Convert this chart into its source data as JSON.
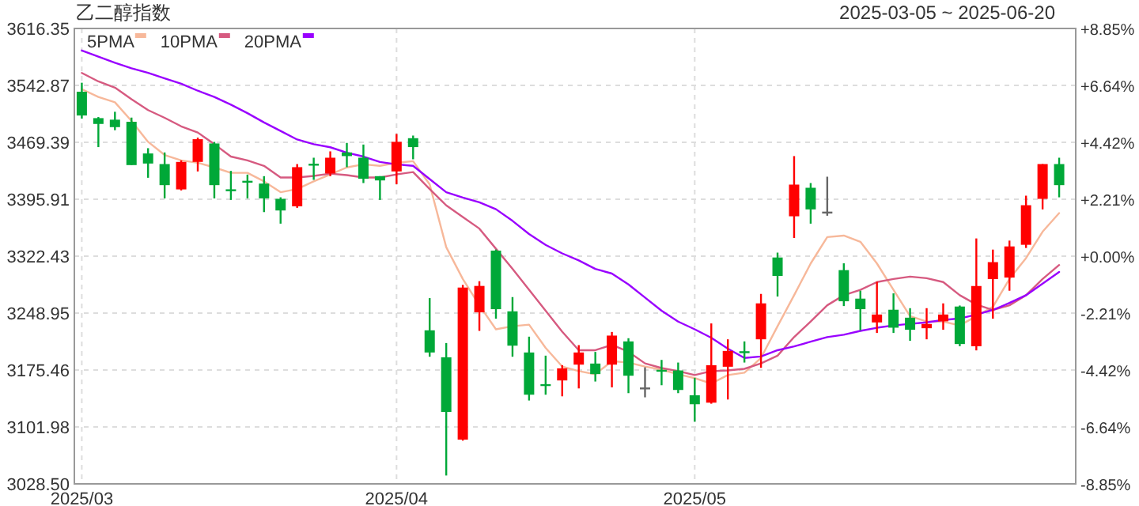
{
  "chart_data": {
    "type": "candlestick",
    "title": "乙二醇指数",
    "subtitle": "2025-03-05 ~ 2025-06-20",
    "categories": [
      "2025/03",
      null,
      null,
      null,
      null,
      null,
      null,
      null,
      null,
      null,
      null,
      null,
      null,
      null,
      null,
      null,
      null,
      null,
      null,
      "2025/04",
      null,
      null,
      null,
      null,
      null,
      null,
      null,
      null,
      null,
      null,
      null,
      null,
      null,
      null,
      null,
      null,
      null,
      "2025/05",
      null,
      null,
      null,
      null,
      null,
      null,
      null,
      null,
      null,
      null,
      null,
      null,
      null,
      null,
      null,
      null,
      null,
      null,
      null,
      null,
      null,
      null
    ],
    "ohlc": [
      [
        3534.7,
        3546.3,
        3500.0,
        3504.0
      ],
      [
        3500.6,
        3502.0,
        3463.2,
        3493.1
      ],
      [
        3498.6,
        3508.8,
        3485.0,
        3489.0
      ],
      [
        3495.9,
        3501.3,
        3440.0,
        3440.0
      ],
      [
        3455.0,
        3461.8,
        3423.6,
        3442.0
      ],
      [
        3441.3,
        3456.3,
        3397.0,
        3414.1
      ],
      [
        3408.6,
        3446.1,
        3407.3,
        3444.1
      ],
      [
        3444.1,
        3475.4,
        3431.8,
        3473.4
      ],
      [
        3467.9,
        3469.9,
        3397.0,
        3414.1
      ],
      [
        3408.0,
        3432.5,
        3395.0,
        3407.0
      ],
      [
        3419.0,
        3427.7,
        3397.0,
        3418.0
      ],
      [
        3416.1,
        3425.7,
        3379.3,
        3397.0
      ],
      [
        3396.4,
        3398.4,
        3364.4,
        3381.4
      ],
      [
        3386.8,
        3441.3,
        3384.8,
        3437.3
      ],
      [
        3441.0,
        3449.5,
        3420.9,
        3440.0
      ],
      [
        3429.1,
        3457.7,
        3425.7,
        3449.5
      ],
      [
        3456.3,
        3468.6,
        3437.3,
        3451.6
      ],
      [
        3449.5,
        3466.5,
        3416.8,
        3422.3
      ],
      [
        3425.7,
        3425.7,
        3395.0,
        3420.2
      ],
      [
        3431.8,
        3480.2,
        3415.4,
        3470.0
      ],
      [
        3474.7,
        3478.1,
        3447.5,
        3463.2
      ],
      [
        3226.7,
        3268.3,
        3192.6,
        3198.1
      ],
      [
        3191.9,
        3210.3,
        3039.3,
        3121.3
      ],
      [
        3085.6,
        3285.3,
        3084.3,
        3281.9
      ],
      [
        3249.9,
        3290.1,
        3226.0,
        3284.0
      ],
      [
        3329.6,
        3331.0,
        3241.7,
        3254.0
      ],
      [
        3251.2,
        3269.6,
        3192.6,
        3206.9
      ],
      [
        3198.1,
        3218.5,
        3136.1,
        3143.6
      ],
      [
        3156.5,
        3194.0,
        3143.6,
        3155.5
      ],
      [
        3162.0,
        3181.7,
        3141.5,
        3177.6
      ],
      [
        3182.4,
        3207.6,
        3151.7,
        3198.1
      ],
      [
        3183.8,
        3198.8,
        3160.6,
        3170.2
      ],
      [
        3182.4,
        3224.6,
        3153.1,
        3219.9
      ],
      [
        3212.4,
        3216.5,
        3145.6,
        3168.1
      ],
      [
        3151.7,
        3179.0,
        3140.2,
        3151.7
      ],
      [
        3175.0,
        3188.5,
        3155.8,
        3174.0
      ],
      [
        3174.9,
        3185.1,
        3145.6,
        3149.7
      ],
      [
        3142.9,
        3165.4,
        3108.8,
        3131.3
      ],
      [
        3133.3,
        3235.6,
        3132.0,
        3181.7
      ],
      [
        3179.7,
        3215.1,
        3137.4,
        3200.1
      ],
      [
        3199.0,
        3212.4,
        3185.1,
        3198.0
      ],
      [
        3215.1,
        3273.7,
        3178.3,
        3261.5
      ],
      [
        3320.7,
        3327.0,
        3270.3,
        3296.9
      ],
      [
        3373.9,
        3451.6,
        3345.9,
        3414.8
      ],
      [
        3410.7,
        3416.8,
        3364.4,
        3382.8
      ],
      [
        3378.7,
        3425.0,
        3374.6,
        3378.7
      ],
      [
        3304.4,
        3313.2,
        3258.0,
        3264.2
      ],
      [
        3267.6,
        3277.8,
        3226.7,
        3254.0
      ],
      [
        3236.9,
        3289.4,
        3223.3,
        3247.1
      ],
      [
        3253.3,
        3274.4,
        3223.3,
        3230.1
      ],
      [
        3243.0,
        3255.3,
        3213.1,
        3227.4
      ],
      [
        3229.4,
        3255.3,
        3215.1,
        3234.9
      ],
      [
        3238.3,
        3261.5,
        3227.4,
        3247.1
      ],
      [
        3257.4,
        3258.7,
        3206.2,
        3209.0
      ],
      [
        3206.2,
        3345.3,
        3200.8,
        3283.9
      ],
      [
        3292.8,
        3330.9,
        3241.7,
        3314.7
      ],
      [
        3294.8,
        3342.5,
        3277.8,
        3335.0
      ],
      [
        3337.1,
        3400.5,
        3333.0,
        3388.2
      ],
      [
        3396.4,
        3441.3,
        3382.8,
        3441.3
      ],
      [
        3441.3,
        3449.5,
        3398.4,
        3414.1
      ]
    ],
    "colors": [
      "#00a838",
      "#00a838",
      "#00a838",
      "#00a838",
      "#00a838",
      "#00a838",
      "#ff0000",
      "#ff0000",
      "#00a838",
      "#00a838",
      "#00a838",
      "#00a838",
      "#00a838",
      "#ff0000",
      "#00a838",
      "#ff0000",
      "#00a838",
      "#00a838",
      "#00a838",
      "#ff0000",
      "#00a838",
      "#00a838",
      "#00a838",
      "#ff0000",
      "#ff0000",
      "#00a838",
      "#00a838",
      "#00a838",
      "#00a838",
      "#ff0000",
      "#ff0000",
      "#00a838",
      "#ff0000",
      "#00a838",
      "#666666",
      "#00a838",
      "#00a838",
      "#00a838",
      "#ff0000",
      "#ff0000",
      "#00a838",
      "#ff0000",
      "#00a838",
      "#ff0000",
      "#00a838",
      "#666666",
      "#00a838",
      "#00a838",
      "#ff0000",
      "#00a838",
      "#00a838",
      "#ff0000",
      "#ff0000",
      "#00a838",
      "#ff0000",
      "#ff0000",
      "#ff0000",
      "#ff0000",
      "#ff0000",
      "#00a838"
    ],
    "ylim": [
      3028.5,
      3616.35
    ],
    "yticks": [
      3616.35,
      3542.87,
      3469.39,
      3395.91,
      3322.43,
      3248.95,
      3175.46,
      3101.98,
      {
        "value": 3028.5,
        "label": "3028.50"
      }
    ],
    "y2lim": [
      -8.85,
      8.85
    ],
    "y2ticks": [
      {
        "value": 8.85,
        "label": "+8.85%"
      },
      {
        "value": 6.64,
        "label": "+6.64%"
      },
      {
        "value": 4.42,
        "label": "+4.42%"
      },
      {
        "value": 2.21,
        "label": "+2.21%"
      },
      {
        "value": 0,
        "label": "+0.00%"
      },
      {
        "value": -2.21,
        "label": "-2.21%"
      },
      {
        "value": -4.42,
        "label": "-4.42%"
      },
      {
        "value": -6.64,
        "label": "-6.64%"
      },
      {
        "value": -8.85,
        "label": "-8.85%"
      }
    ],
    "grid": true,
    "legend": "top left",
    "series": [
      {
        "name": "5PMA",
        "type": "line",
        "color": "#f7b89a",
        "values": [
          3538,
          3528,
          3521,
          3497,
          3470,
          3453,
          3446,
          3443,
          3437,
          3430,
          3430,
          3419,
          3405,
          3409,
          3419,
          3428,
          3437,
          3441,
          3439,
          3443,
          3445,
          3415,
          3334,
          3293,
          3259,
          3228,
          3232,
          3234,
          3204,
          3180,
          3174,
          3170,
          3187,
          3185,
          3180,
          3176,
          3170,
          3165,
          3158,
          3169,
          3172,
          3191,
          3232,
          3272,
          3313,
          3347,
          3349,
          3341,
          3313,
          3279,
          3245,
          3238,
          3238,
          3233,
          3245,
          3257,
          3293,
          3320,
          3354,
          3378
        ]
      },
      {
        "name": "10PMA",
        "type": "line",
        "color": "#d65a80",
        "values": [
          3559,
          3548,
          3540,
          3525,
          3511,
          3501,
          3490,
          3482,
          3467,
          3451,
          3446,
          3439,
          3424,
          3424,
          3426,
          3429,
          3427,
          3424,
          3424,
          3428,
          3431,
          3409,
          3388,
          3373,
          3358,
          3332,
          3306,
          3279,
          3252,
          3225,
          3201,
          3201,
          3208,
          3199,
          3184,
          3178,
          3174,
          3169,
          3174,
          3175,
          3177,
          3184,
          3194,
          3218,
          3238,
          3259,
          3272,
          3279,
          3289,
          3293,
          3296,
          3294,
          3289,
          3272,
          3260,
          3253,
          3259,
          3272,
          3293,
          3311
        ]
      },
      {
        "name": "20PMA",
        "type": "line",
        "color": "#9900ff",
        "values": [
          3588,
          3580,
          3572,
          3565,
          3559,
          3552,
          3545,
          3536,
          3528,
          3518,
          3507,
          3495,
          3484,
          3473,
          3467,
          3463,
          3456,
          3451,
          3444,
          3441,
          3439,
          3422,
          3405,
          3398,
          3392,
          3383,
          3368,
          3351,
          3337,
          3326,
          3317,
          3306,
          3300,
          3286,
          3269,
          3252,
          3238,
          3228,
          3217,
          3203,
          3191,
          3193,
          3201,
          3206,
          3212,
          3218,
          3221,
          3226,
          3230,
          3233,
          3235,
          3237,
          3240,
          3242,
          3247,
          3253,
          3262,
          3272,
          3287,
          3302
        ]
      }
    ]
  }
}
